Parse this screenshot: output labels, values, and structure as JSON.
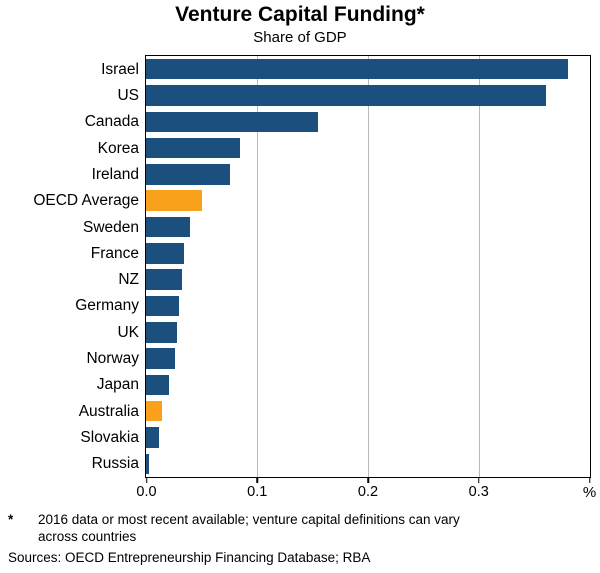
{
  "title": "Venture Capital Funding*",
  "subtitle": "Share of GDP",
  "chart_data": {
    "type": "bar",
    "orientation": "horizontal",
    "title": "Venture Capital Funding*",
    "subtitle": "Share of GDP",
    "categories": [
      "Israel",
      "US",
      "Canada",
      "Korea",
      "Ireland",
      "OECD Average",
      "Sweden",
      "France",
      "NZ",
      "Germany",
      "UK",
      "Norway",
      "Japan",
      "Australia",
      "Slovakia",
      "Russia"
    ],
    "values": [
      0.38,
      0.36,
      0.155,
      0.085,
      0.076,
      0.05,
      0.04,
      0.034,
      0.032,
      0.03,
      0.028,
      0.026,
      0.021,
      0.014,
      0.012,
      0.003
    ],
    "xlim": [
      0,
      0.4
    ],
    "xticks": [
      0,
      0.1,
      0.2,
      0.3
    ],
    "xtick_labels": [
      "0.0",
      "0.1",
      "0.2",
      "0.3"
    ],
    "unit_label": "%",
    "grid": true,
    "legend": "none",
    "highlight_categories": [
      "OECD Average",
      "Australia"
    ],
    "colors": {
      "bar": "#1B4F7E",
      "highlight": "#F9A11B",
      "gridline": "#b8b8b8"
    }
  },
  "footnote": {
    "marker": "*",
    "line1": "2016 data or most recent available; venture capital definitions can vary",
    "line2": "across countries"
  },
  "sources": "Sources: OECD Entrepreneurship Financing Database; RBA"
}
